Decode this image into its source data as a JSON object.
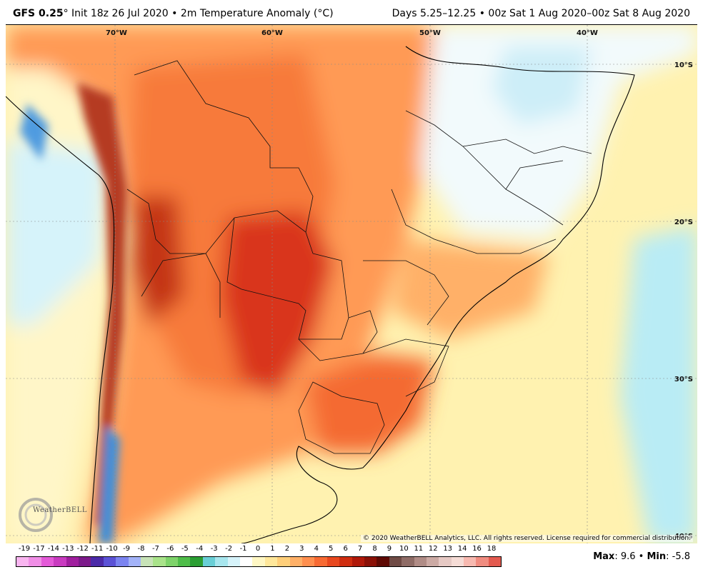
{
  "header": {
    "model": "GFS 0.25",
    "degree": "°",
    "init_text": "Init 18z 26 Jul 2020",
    "separator": "•",
    "field": "2m Temperature Anomaly (°C)",
    "period": "Days 5.25–12.25 • 00z Sat 1 Aug 2020–00z Sat 8 Aug 2020"
  },
  "map": {
    "longitude_labels": [
      "70°W",
      "60°W",
      "50°W",
      "40°W"
    ],
    "latitude_labels": [
      "10°S",
      "20°S",
      "30°S",
      "40°S"
    ],
    "copyright": "© 2020 WeatherBELL Analytics, LLC. All rights reserved. License required for commercial distribution.",
    "logo_text": "WeatherBELL"
  },
  "legend": {
    "ticks": [
      "-19",
      "-17",
      "-14",
      "-13",
      "-12",
      "-11",
      "-10",
      "-9",
      "-8",
      "-7",
      "-6",
      "-5",
      "-4",
      "-3",
      "-2",
      "-1",
      "0",
      "1",
      "2",
      "3",
      "4",
      "5",
      "6",
      "7",
      "8",
      "9",
      "10",
      "11",
      "12",
      "13",
      "14",
      "16",
      "18"
    ],
    "colors": [
      "#f9b5f0",
      "#f08ee6",
      "#e45ad8",
      "#c93bc0",
      "#a01f9e",
      "#7c1a8a",
      "#4b2aa8",
      "#5b52d6",
      "#7b84f0",
      "#a3b3f8",
      "#c8e3b8",
      "#a9e38a",
      "#7ed36a",
      "#4fbd4a",
      "#2b9e33",
      "#69cfd6",
      "#a7e6ee",
      "#d6f3fa",
      "#ffffff",
      "#fff7c4",
      "#ffe79a",
      "#ffcf7a",
      "#ffb067",
      "#ff8f4f",
      "#f76a33",
      "#e8481f",
      "#cf2d10",
      "#b0190a",
      "#8a1107",
      "#5e0a04",
      "#6f4b45",
      "#8f6c66",
      "#b08c86",
      "#ccaaa4",
      "#e6c9c4",
      "#f5dcd6",
      "#f7b9b0",
      "#f08c80",
      "#e35a4f"
    ]
  },
  "stats": {
    "max_label": "Max",
    "max_value": ": 9.6",
    "separator": "•",
    "min_label": "Min",
    "min_value": ": -5.8"
  }
}
